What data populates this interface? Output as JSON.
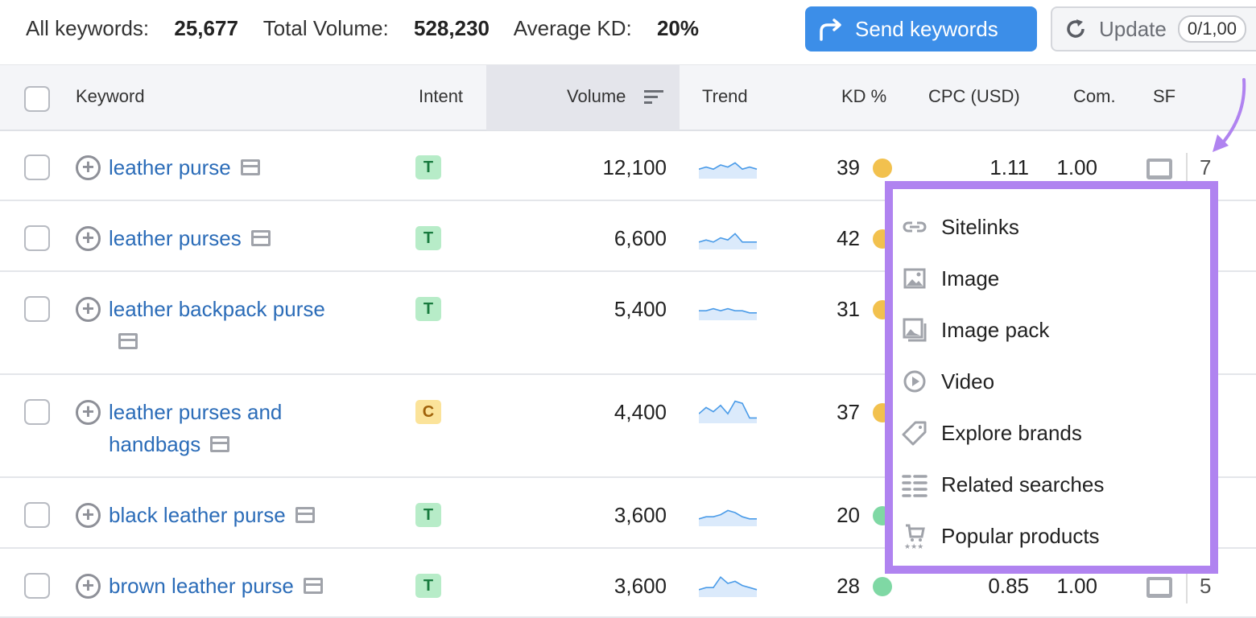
{
  "summary": {
    "all_keywords_label": "All keywords:",
    "all_keywords": "25,677",
    "total_volume_label": "Total Volume:",
    "total_volume": "528,230",
    "avg_kd_label": "Average KD:",
    "avg_kd": "20%"
  },
  "toolbar": {
    "send_label": "Send keywords",
    "update_label": "Update",
    "update_count": "0/1,00"
  },
  "columns": {
    "keyword": "Keyword",
    "intent": "Intent",
    "volume": "Volume",
    "trend": "Trend",
    "kd": "KD %",
    "cpc": "CPC (USD)",
    "com": "Com.",
    "sf": "SF"
  },
  "colors": {
    "accent": "#3c8ee8",
    "highlight": "#b083f0",
    "kd_yellow": "#f2c14e",
    "kd_green": "#7fd8a4",
    "intent_t": "#b7ecc8",
    "intent_c": "#fbe39a"
  },
  "rows": [
    {
      "keyword": "leather purse",
      "intent": "T",
      "volume": "12,100",
      "trend": [
        3,
        4,
        3,
        5,
        4,
        6,
        3,
        4,
        3
      ],
      "kd": "39",
      "kd_color": "#f2c14e",
      "cpc": "1.11",
      "com": "1.00",
      "sf": "7"
    },
    {
      "keyword": "leather purses",
      "intent": "T",
      "volume": "6,600",
      "trend": [
        2,
        3,
        2,
        4,
        3,
        6,
        2,
        2,
        2
      ],
      "kd": "42",
      "kd_color": "#f2c14e"
    },
    {
      "keyword": "leather backpack purse",
      "intent": "T",
      "volume": "5,400",
      "trend": [
        3,
        3,
        4,
        3,
        4,
        3,
        3,
        2,
        2
      ],
      "kd": "31",
      "kd_color": "#f2c14e"
    },
    {
      "keyword": "leather purses and handbags",
      "intent": "C",
      "volume": "4,400",
      "trend": [
        3,
        6,
        4,
        7,
        3,
        9,
        8,
        1,
        1
      ],
      "kd": "37",
      "kd_color": "#f2c14e"
    },
    {
      "keyword": "black leather purse",
      "intent": "T",
      "volume": "3,600",
      "trend": [
        2,
        3,
        3,
        4,
        6,
        5,
        3,
        2,
        2
      ],
      "kd": "20",
      "kd_color": "#7fd8a4"
    },
    {
      "keyword": "brown leather purse",
      "intent": "T",
      "volume": "3,600",
      "trend": [
        2,
        3,
        3,
        8,
        5,
        6,
        4,
        3,
        2
      ],
      "kd": "28",
      "kd_color": "#7fd8a4",
      "cpc": "0.85",
      "com": "1.00",
      "sf": "5"
    }
  ],
  "sf_menu": [
    {
      "label": "Sitelinks",
      "icon": "link-icon"
    },
    {
      "label": "Image",
      "icon": "image-icon"
    },
    {
      "label": "Image pack",
      "icon": "image-pack-icon"
    },
    {
      "label": "Video",
      "icon": "play-icon"
    },
    {
      "label": "Explore brands",
      "icon": "tag-icon"
    },
    {
      "label": "Related searches",
      "icon": "list-icon"
    },
    {
      "label": "Popular products",
      "icon": "cart-icon"
    }
  ]
}
